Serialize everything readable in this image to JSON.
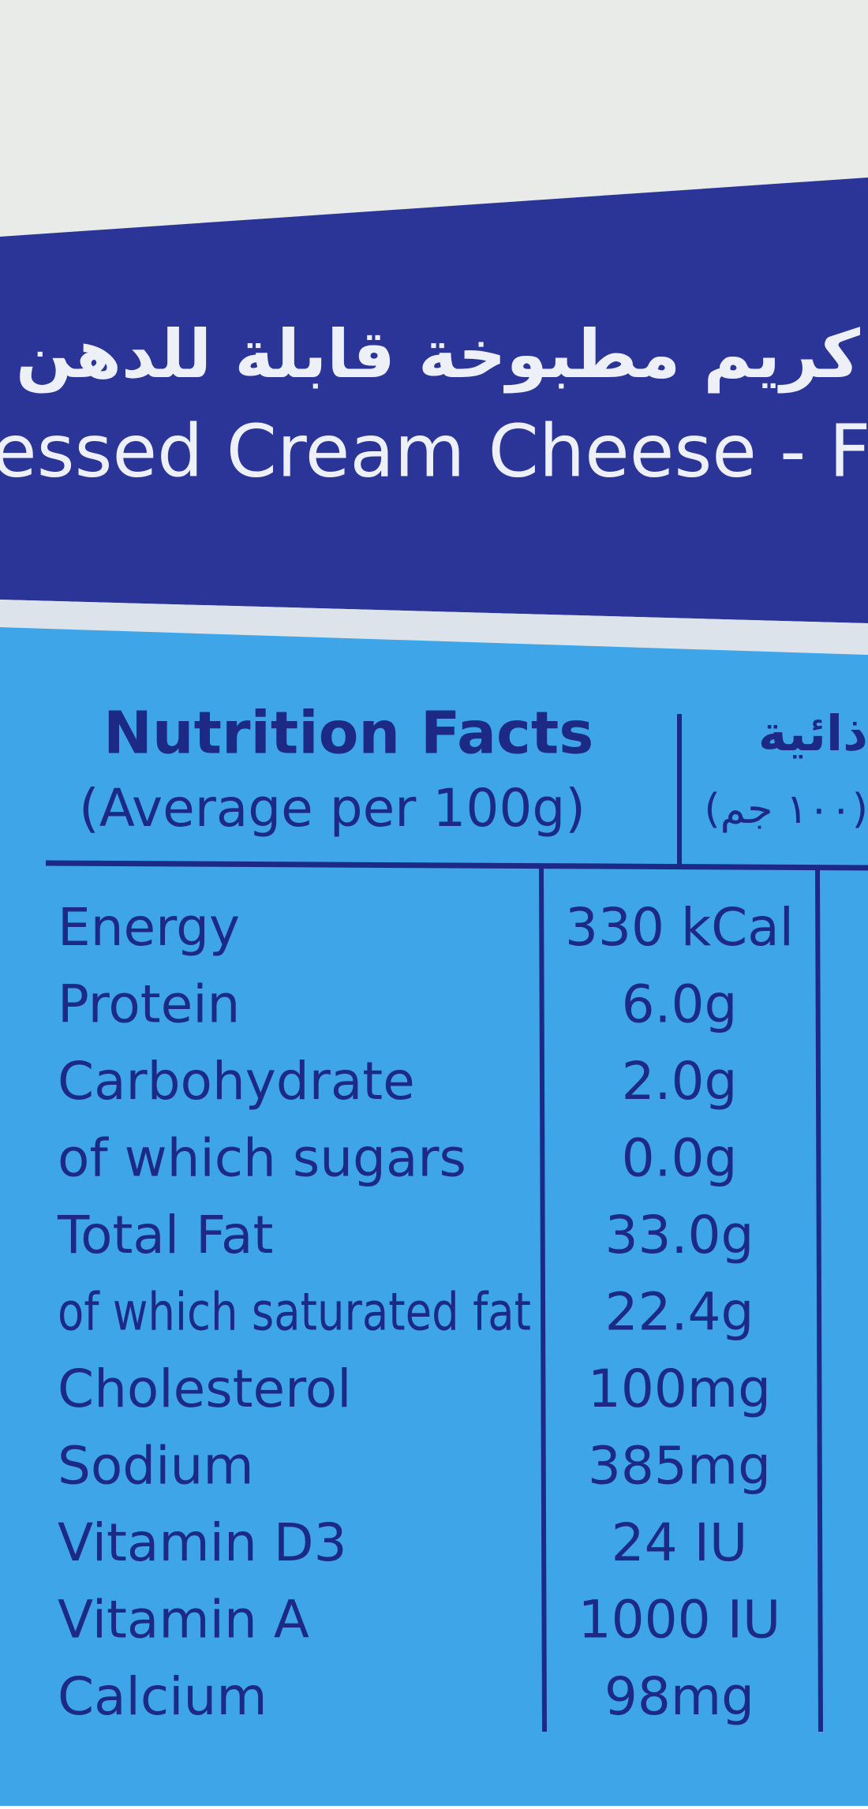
{
  "banner": {
    "arabic": "كريم مطبوخة قابلة للدهن",
    "english": "essed Cream Cheese - F"
  },
  "table": {
    "title": "Nutrition Facts",
    "subtitle": "(Average per 100g)",
    "arabic_title": "ذائية",
    "arabic_subtitle": "(١٠٠ جم)",
    "rows": [
      [
        "Energy",
        "330 kCal"
      ],
      [
        "Protein",
        "6.0g"
      ],
      [
        "Carbohydrate",
        "2.0g"
      ],
      [
        "of which sugars",
        "0.0g"
      ],
      [
        "Total Fat",
        "33.0g"
      ],
      [
        "of which saturated fat",
        "22.4g"
      ],
      [
        "Cholesterol",
        "100mg"
      ],
      [
        "Sodium",
        "385mg"
      ],
      [
        "Vitamin D3",
        "24 IU"
      ],
      [
        "Vitamin A",
        "1000 IU"
      ],
      [
        "Calcium",
        "98mg"
      ]
    ]
  }
}
